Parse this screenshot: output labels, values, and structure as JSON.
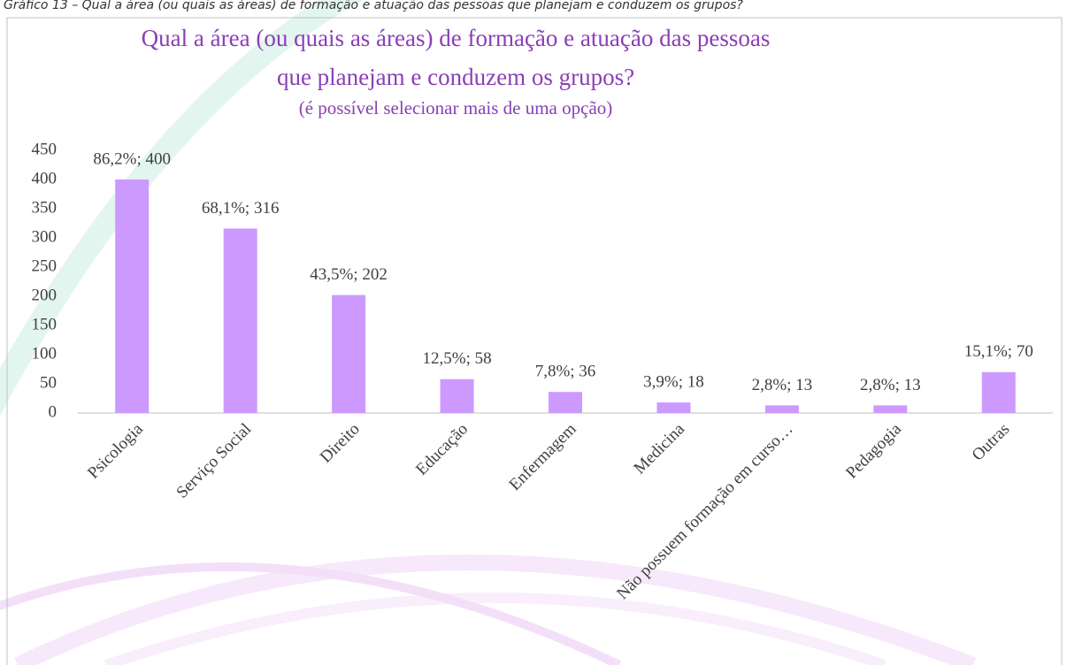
{
  "caption": "Gráfico 13 – Qual a área (ou quais as áreas) de formação e atuação das pessoas que planejam e conduzem os grupos?",
  "chart_data": {
    "type": "bar",
    "title": [
      "Qual a área (ou quais as áreas) de formação e atuação das pessoas",
      "que planejam e conduzem os grupos?"
    ],
    "subtitle": "(é possível selecionar mais de uma opção)",
    "categories": [
      "Psicologia",
      "Serviço Social",
      "Direito",
      "Educação",
      "Enfermagem",
      "Medicina",
      "Não possuem formação em curso…",
      "Pedagogia",
      "Outras"
    ],
    "values": [
      400,
      316,
      202,
      58,
      36,
      18,
      13,
      13,
      70
    ],
    "value_labels": [
      "86,2%; 400",
      "68,1%; 316",
      "43,5%; 202",
      "12,5%; 58",
      "7,8%; 36",
      "3,9%; 18",
      "2,8%; 13",
      "2,8%; 13",
      "15,1%; 70"
    ],
    "color": "#cc99ff",
    "ylim": [
      0,
      450
    ],
    "yticks": [
      0,
      50,
      100,
      150,
      200,
      250,
      300,
      350,
      400,
      450
    ],
    "grid": false
  }
}
